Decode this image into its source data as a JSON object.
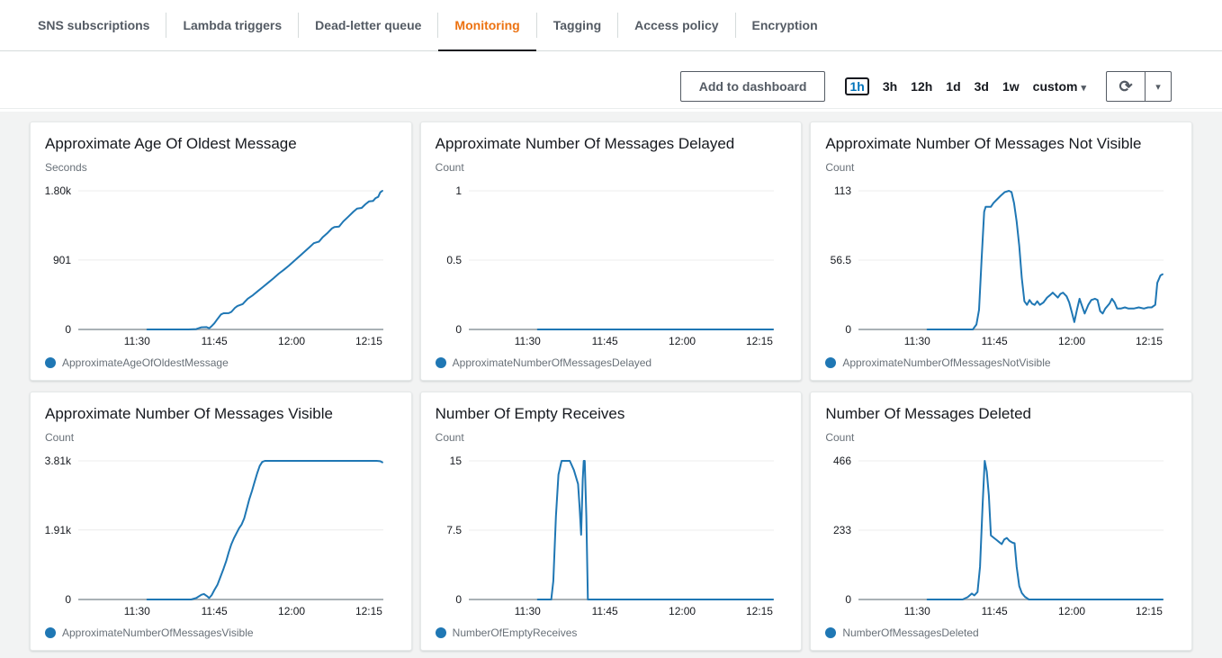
{
  "tabs": [
    {
      "label": "SNS subscriptions",
      "active": false
    },
    {
      "label": "Lambda triggers",
      "active": false
    },
    {
      "label": "Dead-letter queue",
      "active": false
    },
    {
      "label": "Monitoring",
      "active": true
    },
    {
      "label": "Tagging",
      "active": false
    },
    {
      "label": "Access policy",
      "active": false
    },
    {
      "label": "Encryption",
      "active": false
    }
  ],
  "toolbar": {
    "add_to_dashboard_label": "Add to dashboard",
    "time_ranges": [
      {
        "label": "1h",
        "selected": true
      },
      {
        "label": "3h",
        "selected": false
      },
      {
        "label": "12h",
        "selected": false
      },
      {
        "label": "1d",
        "selected": false
      },
      {
        "label": "3d",
        "selected": false
      },
      {
        "label": "1w",
        "selected": false
      },
      {
        "label": "custom",
        "selected": false,
        "has_caret": true
      }
    ],
    "refresh_icon_glyph": "⟳",
    "caret_glyph": "▾"
  },
  "chart_style": {
    "line_color": "#1f77b4",
    "swatch_color": "#1f77b4",
    "grid_color": "#ececec",
    "zero_line_color": "#a9b1b6",
    "active_tab_color": "#ec7211",
    "x_unit": "minutes after 11:00",
    "x_domain": [
      18.6,
      77.8
    ]
  },
  "chart_data": [
    {
      "type": "line",
      "title": "Approximate Age Of Oldest Message",
      "ylabel": "Seconds",
      "legend": "ApproximateAgeOfOldestMessage",
      "ylim": [
        0,
        1800
      ],
      "y_ticks": [
        {
          "label": "1.80k",
          "value": 1800
        },
        {
          "label": "901",
          "value": 901
        },
        {
          "label": "0",
          "value": 0
        }
      ],
      "x_ticks": [
        {
          "label": "11:30",
          "t": 30
        },
        {
          "label": "11:45",
          "t": 45
        },
        {
          "label": "12:00",
          "t": 60
        },
        {
          "label": "12:15",
          "t": 75
        }
      ],
      "points": [
        [
          32,
          0
        ],
        [
          40,
          0
        ],
        [
          41.5,
          5
        ],
        [
          42.5,
          28
        ],
        [
          43.5,
          30
        ],
        [
          44,
          15
        ],
        [
          44.5,
          45
        ],
        [
          45,
          80
        ],
        [
          45.5,
          125
        ],
        [
          46,
          170
        ],
        [
          46.3,
          195
        ],
        [
          46.8,
          210
        ],
        [
          47.8,
          212
        ],
        [
          48.3,
          228
        ],
        [
          49,
          280
        ],
        [
          49.5,
          305
        ],
        [
          50.5,
          330
        ],
        [
          51,
          365
        ],
        [
          51.5,
          400
        ],
        [
          52.5,
          445
        ],
        [
          53.5,
          500
        ],
        [
          54.5,
          555
        ],
        [
          55.5,
          610
        ],
        [
          56.5,
          665
        ],
        [
          57.5,
          725
        ],
        [
          58.5,
          775
        ],
        [
          59.5,
          830
        ],
        [
          60.5,
          890
        ],
        [
          61.5,
          950
        ],
        [
          62.5,
          1010
        ],
        [
          63.5,
          1070
        ],
        [
          64.3,
          1120
        ],
        [
          65,
          1135
        ],
        [
          65.3,
          1140
        ],
        [
          66,
          1195
        ],
        [
          67,
          1255
        ],
        [
          67.8,
          1310
        ],
        [
          68.3,
          1330
        ],
        [
          69.2,
          1335
        ],
        [
          70,
          1400
        ],
        [
          71,
          1465
        ],
        [
          72,
          1530
        ],
        [
          72.7,
          1570
        ],
        [
          73.6,
          1578
        ],
        [
          74.3,
          1625
        ],
        [
          75,
          1662
        ],
        [
          75.8,
          1668
        ],
        [
          76.3,
          1705
        ],
        [
          76.8,
          1722
        ],
        [
          77.2,
          1780
        ],
        [
          77.6,
          1800
        ]
      ]
    },
    {
      "type": "line",
      "title": "Approximate Number Of Messages Delayed",
      "ylabel": "Count",
      "legend": "ApproximateNumberOfMessagesDelayed",
      "ylim": [
        0,
        1
      ],
      "y_ticks": [
        {
          "label": "1",
          "value": 1
        },
        {
          "label": "0.5",
          "value": 0.5
        },
        {
          "label": "0",
          "value": 0
        }
      ],
      "x_ticks": [
        {
          "label": "11:30",
          "t": 30
        },
        {
          "label": "11:45",
          "t": 45
        },
        {
          "label": "12:00",
          "t": 60
        },
        {
          "label": "12:15",
          "t": 75
        }
      ],
      "points": [
        [
          32,
          0
        ],
        [
          77.6,
          0
        ]
      ]
    },
    {
      "type": "line",
      "title": "Approximate Number Of Messages Not Visible",
      "ylabel": "Count",
      "legend": "ApproximateNumberOfMessagesNotVisible",
      "ylim": [
        0,
        113
      ],
      "y_ticks": [
        {
          "label": "113",
          "value": 113
        },
        {
          "label": "56.5",
          "value": 56.5
        },
        {
          "label": "0",
          "value": 0
        }
      ],
      "x_ticks": [
        {
          "label": "11:30",
          "t": 30
        },
        {
          "label": "11:45",
          "t": 45
        },
        {
          "label": "12:00",
          "t": 60
        },
        {
          "label": "12:15",
          "t": 75
        }
      ],
      "points": [
        [
          32,
          0
        ],
        [
          40.8,
          0
        ],
        [
          41.5,
          4
        ],
        [
          42,
          16
        ],
        [
          42.5,
          58
        ],
        [
          43,
          96
        ],
        [
          43.3,
          100
        ],
        [
          44.3,
          100
        ],
        [
          44.8,
          103
        ],
        [
          45.5,
          106
        ],
        [
          46.2,
          109
        ],
        [
          47,
          112
        ],
        [
          47.8,
          113
        ],
        [
          48.3,
          112
        ],
        [
          48.8,
          103
        ],
        [
          49.3,
          88
        ],
        [
          49.8,
          68
        ],
        [
          50.3,
          42
        ],
        [
          50.8,
          23
        ],
        [
          51.3,
          20
        ],
        [
          51.8,
          24
        ],
        [
          52.3,
          21
        ],
        [
          52.8,
          20
        ],
        [
          53.3,
          23
        ],
        [
          53.8,
          20
        ],
        [
          54.5,
          22
        ],
        [
          55.2,
          26
        ],
        [
          55.8,
          28
        ],
        [
          56.3,
          30
        ],
        [
          56.8,
          28
        ],
        [
          57.3,
          26
        ],
        [
          57.8,
          29
        ],
        [
          58.3,
          30
        ],
        [
          59,
          27
        ],
        [
          59.5,
          22
        ],
        [
          60,
          14
        ],
        [
          60.5,
          6
        ],
        [
          61,
          16
        ],
        [
          61.5,
          25
        ],
        [
          62,
          19
        ],
        [
          62.5,
          13
        ],
        [
          63.2,
          20
        ],
        [
          63.8,
          24
        ],
        [
          64.5,
          25
        ],
        [
          65,
          24
        ],
        [
          65.5,
          15
        ],
        [
          66,
          13
        ],
        [
          66.5,
          17
        ],
        [
          67.3,
          21
        ],
        [
          67.8,
          25
        ],
        [
          68.3,
          22
        ],
        [
          68.8,
          17
        ],
        [
          69.5,
          17
        ],
        [
          70.3,
          18
        ],
        [
          71,
          17
        ],
        [
          72,
          17
        ],
        [
          73,
          18
        ],
        [
          74,
          17
        ],
        [
          74.8,
          18
        ],
        [
          75.5,
          18
        ],
        [
          76.2,
          20
        ],
        [
          76.6,
          38
        ],
        [
          77.2,
          44
        ],
        [
          77.6,
          45
        ]
      ]
    },
    {
      "type": "line",
      "title": "Approximate Number Of Messages Visible",
      "ylabel": "Count",
      "legend": "ApproximateNumberOfMessagesVisible",
      "ylim": [
        0,
        3810
      ],
      "y_ticks": [
        {
          "label": "3.81k",
          "value": 3810
        },
        {
          "label": "1.91k",
          "value": 1910
        },
        {
          "label": "0",
          "value": 0
        }
      ],
      "x_ticks": [
        {
          "label": "11:30",
          "t": 30
        },
        {
          "label": "11:45",
          "t": 45
        },
        {
          "label": "12:00",
          "t": 60
        },
        {
          "label": "12:15",
          "t": 75
        }
      ],
      "points": [
        [
          32,
          0
        ],
        [
          40.5,
          0
        ],
        [
          41.5,
          40
        ],
        [
          42.5,
          130
        ],
        [
          43,
          150
        ],
        [
          43.6,
          90
        ],
        [
          44,
          40
        ],
        [
          44.5,
          120
        ],
        [
          45,
          260
        ],
        [
          45.6,
          400
        ],
        [
          46.2,
          620
        ],
        [
          46.8,
          850
        ],
        [
          47.3,
          1050
        ],
        [
          47.8,
          1300
        ],
        [
          48.3,
          1520
        ],
        [
          48.8,
          1680
        ],
        [
          49.3,
          1820
        ],
        [
          49.8,
          1960
        ],
        [
          50.3,
          2060
        ],
        [
          50.8,
          2230
        ],
        [
          51.3,
          2500
        ],
        [
          51.8,
          2760
        ],
        [
          52.3,
          2980
        ],
        [
          52.8,
          3220
        ],
        [
          53.3,
          3460
        ],
        [
          53.8,
          3670
        ],
        [
          54.3,
          3780
        ],
        [
          54.8,
          3810
        ],
        [
          58,
          3810
        ],
        [
          62,
          3810
        ],
        [
          66,
          3810
        ],
        [
          70,
          3810
        ],
        [
          74,
          3810
        ],
        [
          76.5,
          3810
        ],
        [
          77.2,
          3800
        ],
        [
          77.6,
          3770
        ]
      ]
    },
    {
      "type": "line",
      "title": "Number Of Empty Receives",
      "ylabel": "Count",
      "legend": "NumberOfEmptyReceives",
      "ylim": [
        0,
        15
      ],
      "y_ticks": [
        {
          "label": "15",
          "value": 15
        },
        {
          "label": "7.5",
          "value": 7.5
        },
        {
          "label": "0",
          "value": 0
        }
      ],
      "x_ticks": [
        {
          "label": "11:30",
          "t": 30
        },
        {
          "label": "11:45",
          "t": 45
        },
        {
          "label": "12:00",
          "t": 60
        },
        {
          "label": "12:15",
          "t": 75
        }
      ],
      "points": [
        [
          32,
          0
        ],
        [
          34.6,
          0
        ],
        [
          35,
          2
        ],
        [
          35.5,
          9
        ],
        [
          36,
          13.5
        ],
        [
          36.6,
          15
        ],
        [
          38.2,
          15
        ],
        [
          39,
          14
        ],
        [
          39.8,
          12.5
        ],
        [
          40.1,
          10
        ],
        [
          40.4,
          7
        ],
        [
          40.7,
          13
        ],
        [
          40.9,
          15
        ],
        [
          41.1,
          15
        ],
        [
          41.4,
          9
        ],
        [
          41.7,
          0
        ],
        [
          42,
          0
        ],
        [
          77.6,
          0
        ]
      ]
    },
    {
      "type": "line",
      "title": "Number Of Messages Deleted",
      "ylabel": "Count",
      "legend": "NumberOfMessagesDeleted",
      "ylim": [
        0,
        466
      ],
      "y_ticks": [
        {
          "label": "466",
          "value": 466
        },
        {
          "label": "233",
          "value": 233
        },
        {
          "label": "0",
          "value": 0
        }
      ],
      "x_ticks": [
        {
          "label": "11:30",
          "t": 30
        },
        {
          "label": "11:45",
          "t": 45
        },
        {
          "label": "12:00",
          "t": 60
        },
        {
          "label": "12:15",
          "t": 75
        }
      ],
      "points": [
        [
          32,
          0
        ],
        [
          38.8,
          0
        ],
        [
          39.8,
          8
        ],
        [
          40.6,
          20
        ],
        [
          41.1,
          14
        ],
        [
          41.7,
          25
        ],
        [
          42.2,
          110
        ],
        [
          42.7,
          320
        ],
        [
          43.1,
          466
        ],
        [
          43.5,
          430
        ],
        [
          43.9,
          350
        ],
        [
          44.3,
          215
        ],
        [
          44.9,
          207
        ],
        [
          45.4,
          200
        ],
        [
          45.9,
          193
        ],
        [
          46.4,
          186
        ],
        [
          46.9,
          202
        ],
        [
          47.4,
          207
        ],
        [
          47.9,
          197
        ],
        [
          48.5,
          191
        ],
        [
          48.9,
          189
        ],
        [
          49.3,
          110
        ],
        [
          49.8,
          45
        ],
        [
          50.3,
          22
        ],
        [
          50.9,
          9
        ],
        [
          51.7,
          0
        ],
        [
          53,
          0
        ],
        [
          77.6,
          0
        ]
      ]
    }
  ]
}
